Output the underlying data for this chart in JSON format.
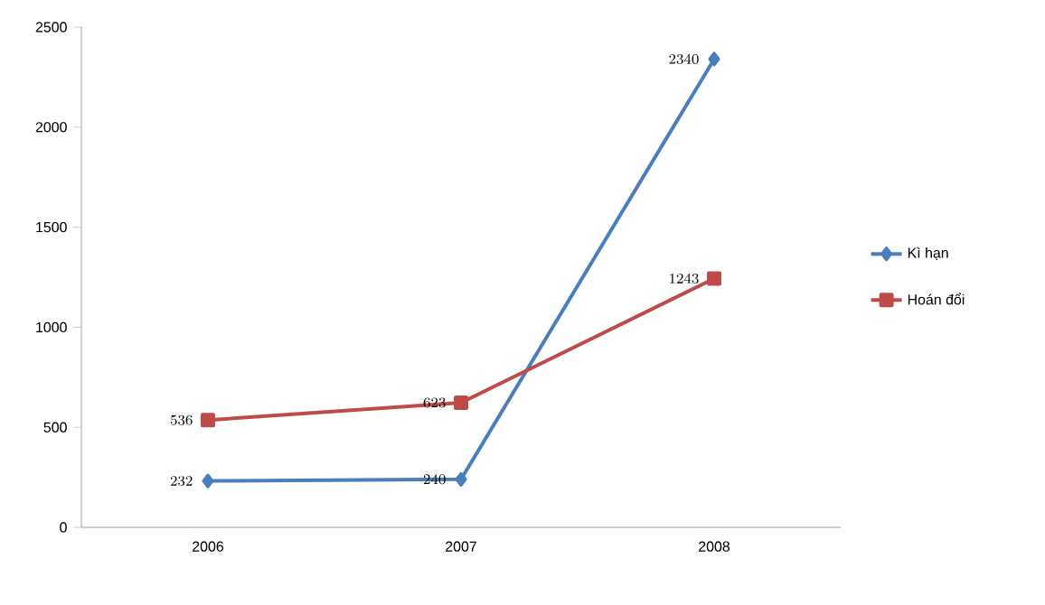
{
  "chart_data": {
    "type": "line",
    "categories": [
      "2006",
      "2007",
      "2008"
    ],
    "series": [
      {
        "name": "Kì hạn",
        "color": "#4a7ebb",
        "marker": "diamond",
        "values": [
          232,
          240,
          2340
        ]
      },
      {
        "name": "Hoán đổi",
        "color": "#be4b48",
        "marker": "square",
        "values": [
          536,
          623,
          1243
        ]
      }
    ],
    "ylim": [
      0,
      2500
    ],
    "yticks": [
      0,
      500,
      1000,
      1500,
      2000,
      2500
    ],
    "grid": false,
    "legend": "right",
    "data_labels": true,
    "line_style": "solid"
  }
}
